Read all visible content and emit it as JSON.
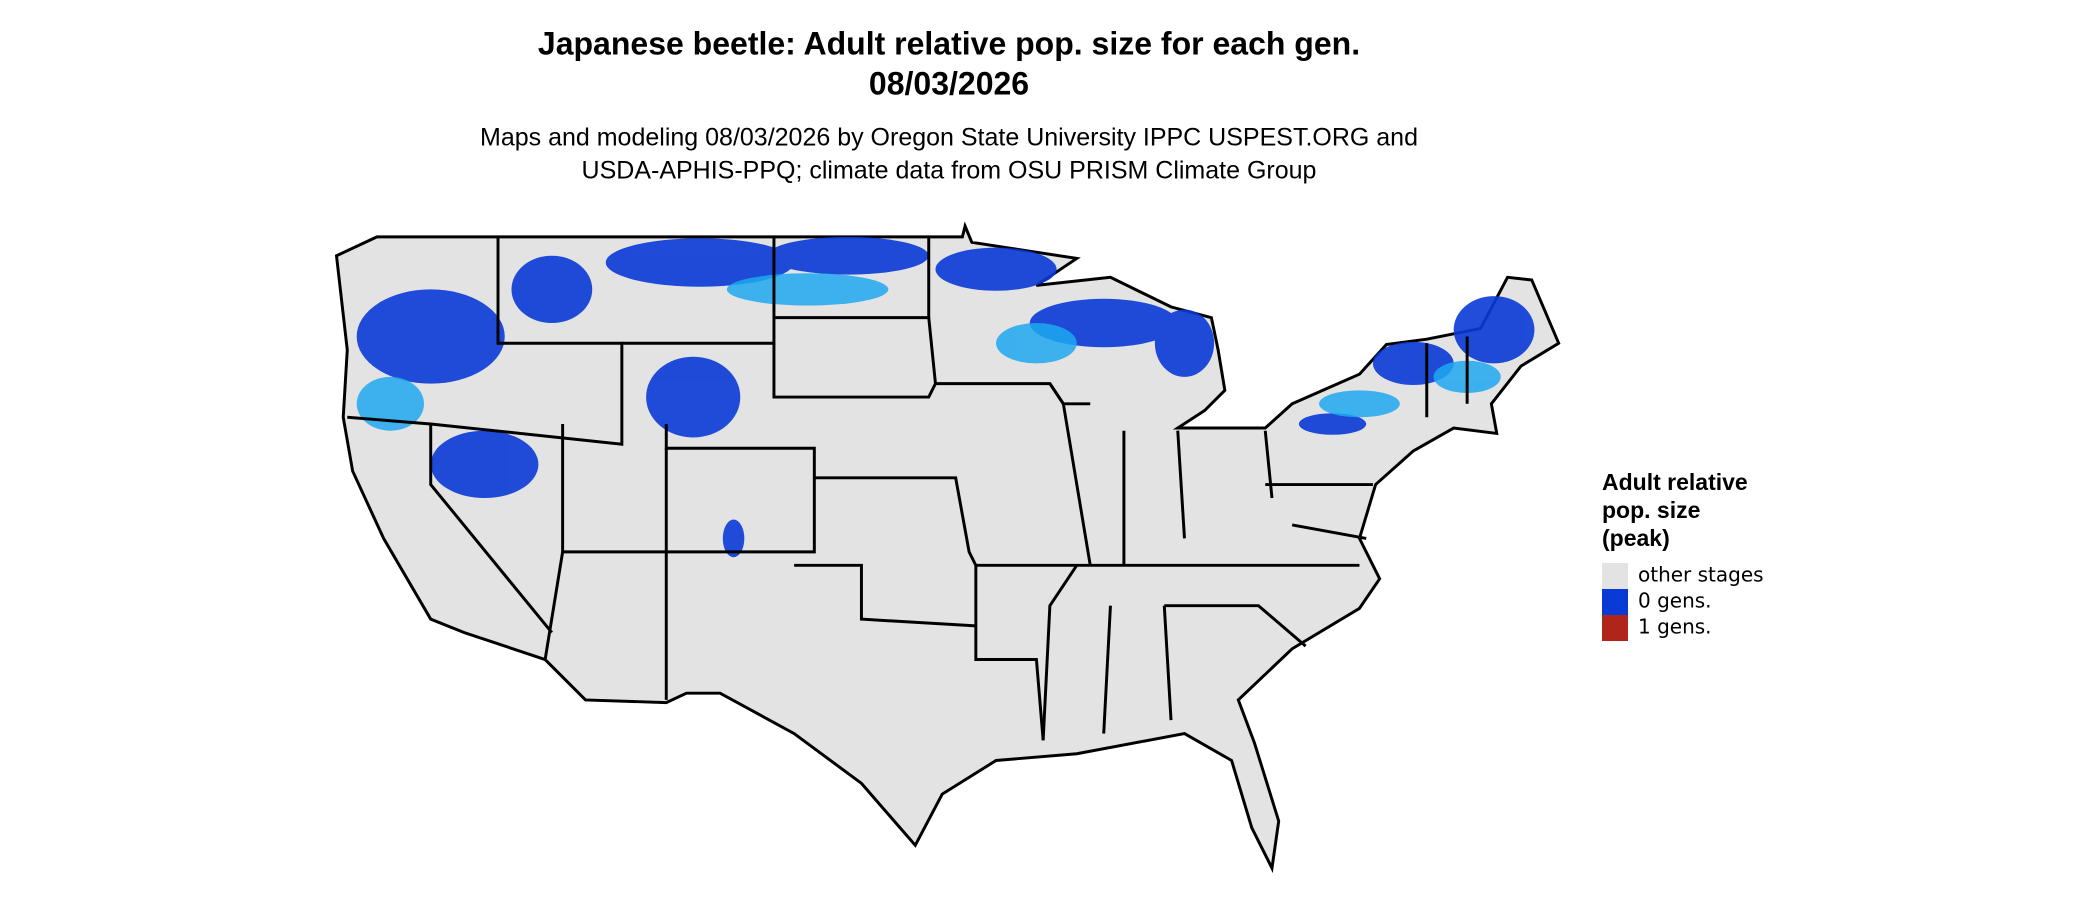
{
  "title": [
    "Japanese beetle: Adult relative pop. size for each gen.",
    "08/03/2026"
  ],
  "subtitle": [
    "Maps and modeling 08/03/2026 by Oregon State University IPPC USPEST.ORG and",
    "USDA-APHIS-PPQ; climate data from OSU PRISM Climate Group"
  ],
  "legend": {
    "title": [
      "Adult relative",
      "pop. size",
      "(peak)"
    ],
    "items": [
      {
        "label": "other stages",
        "color": "#e3e3e3"
      },
      {
        "label": "0 gens.",
        "color": "#0a3ad6"
      },
      {
        "label": "1 gens.",
        "color": "#b0241a"
      }
    ]
  }
}
